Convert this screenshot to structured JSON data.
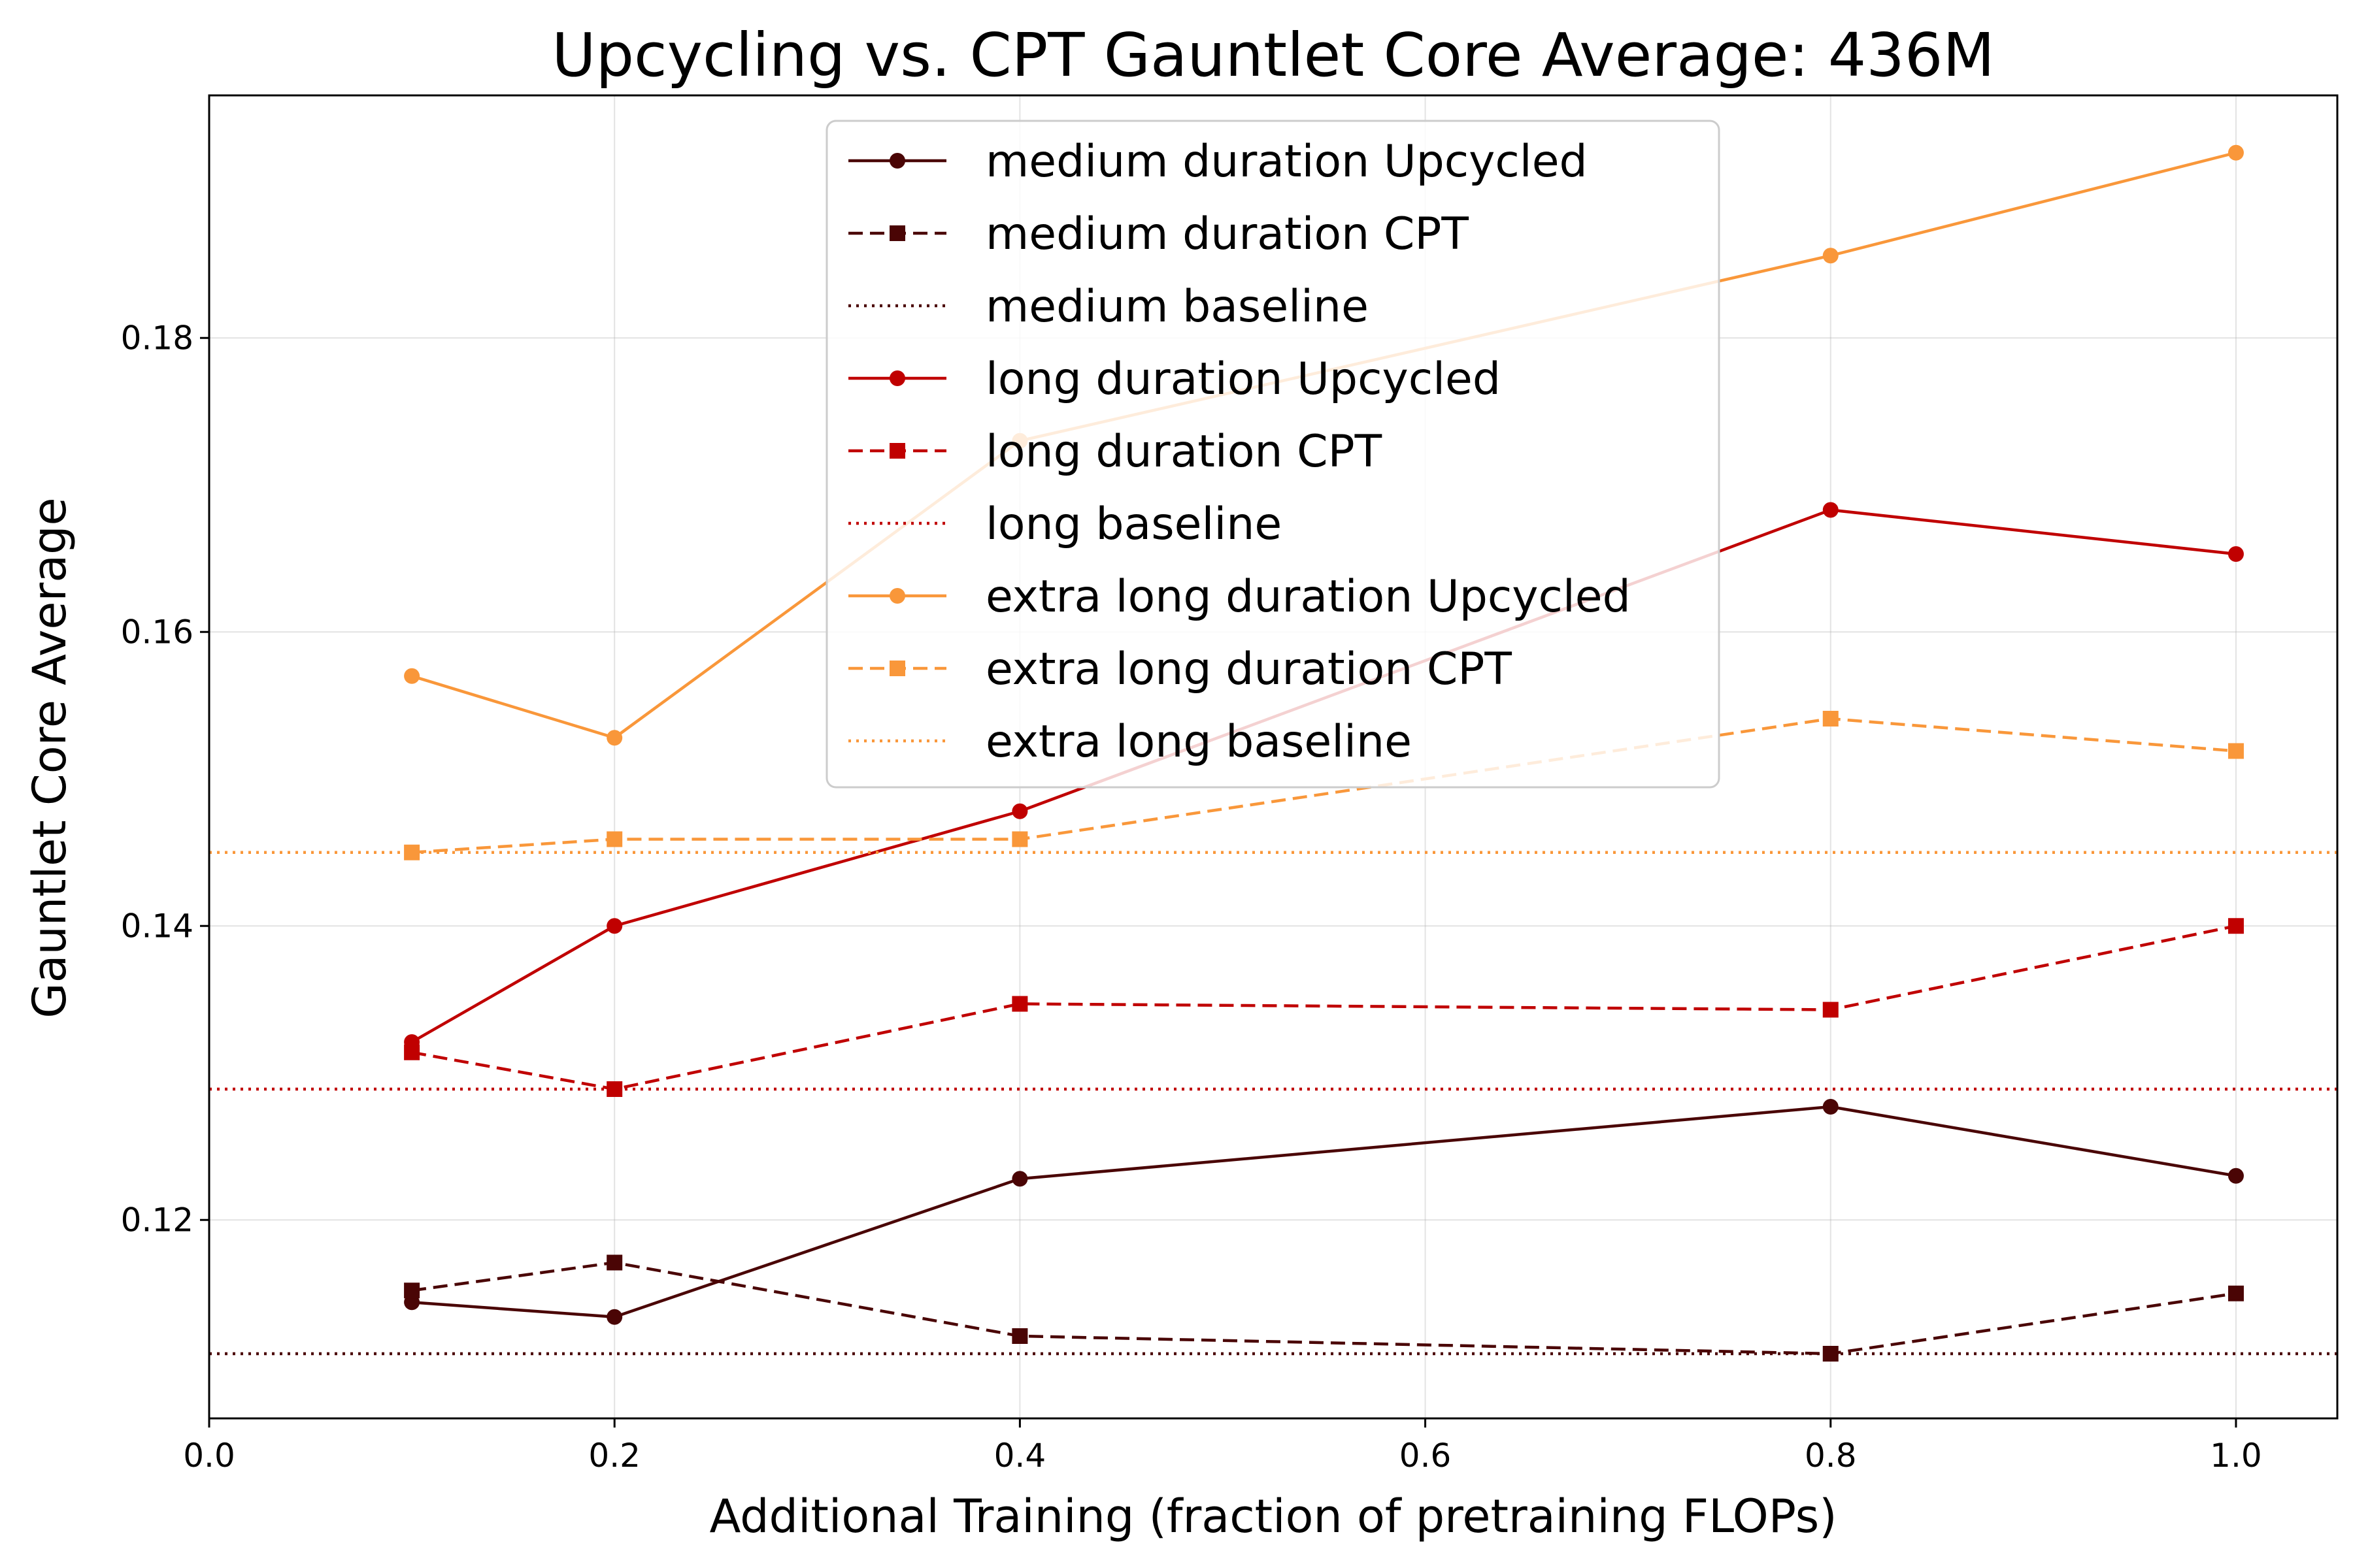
{
  "chart_data": {
    "type": "line",
    "title": "Upcycling vs. CPT Gauntlet Core Average: 436M",
    "xlabel": "Additional Training (fraction of pretraining FLOPs)",
    "ylabel": "Gauntlet Core Average",
    "xlim": [
      0.0,
      1.05
    ],
    "ylim": [
      0.1065,
      0.1965
    ],
    "xticks": [
      0.0,
      0.2,
      0.4,
      0.6,
      0.8,
      1.0
    ],
    "xtick_labels": [
      "0.0",
      "0.2",
      "0.4",
      "0.6",
      "0.8",
      "1.0"
    ],
    "yticks": [
      0.12,
      0.14,
      0.16,
      0.18
    ],
    "ytick_labels": [
      "0.12",
      "0.14",
      "0.16",
      "0.18"
    ],
    "grid": true,
    "legend_position": "upper-center",
    "x": [
      0.1,
      0.2,
      0.4,
      0.8,
      1.0
    ],
    "series": [
      {
        "name": "medium duration Upcycled",
        "kind": "line",
        "marker": "circle",
        "dash": "solid",
        "color": "#4a0505",
        "values": [
          0.1144,
          0.1134,
          0.1228,
          0.1277,
          0.123
        ]
      },
      {
        "name": "medium duration CPT",
        "kind": "line",
        "marker": "square",
        "dash": "dashed",
        "color": "#4a0505",
        "values": [
          0.1152,
          0.1171,
          0.1121,
          0.1109,
          0.115
        ]
      },
      {
        "name": "medium baseline",
        "kind": "baseline",
        "marker": "none",
        "dash": "dotted",
        "color": "#4a0505",
        "value": 0.1109
      },
      {
        "name": "long duration Upcycled",
        "kind": "line",
        "marker": "circle",
        "dash": "solid",
        "color": "#c00000",
        "values": [
          0.1321,
          0.14,
          0.1478,
          0.1683,
          0.1653
        ]
      },
      {
        "name": "long duration CPT",
        "kind": "line",
        "marker": "square",
        "dash": "dashed",
        "color": "#c00000",
        "values": [
          0.1314,
          0.1289,
          0.1347,
          0.1343,
          0.14
        ]
      },
      {
        "name": "long baseline",
        "kind": "baseline",
        "marker": "none",
        "dash": "dotted",
        "color": "#c00000",
        "value": 0.1289
      },
      {
        "name": "extra long duration Upcycled",
        "kind": "line",
        "marker": "circle",
        "dash": "solid",
        "color": "#f9973a",
        "values": [
          0.157,
          0.1528,
          0.173,
          0.1856,
          0.1926
        ]
      },
      {
        "name": "extra long duration CPT",
        "kind": "line",
        "marker": "square",
        "dash": "dashed",
        "color": "#f9973a",
        "values": [
          0.145,
          0.1459,
          0.1459,
          0.1541,
          0.1519
        ]
      },
      {
        "name": "extra long baseline",
        "kind": "baseline",
        "marker": "none",
        "dash": "dotted",
        "color": "#f9973a",
        "value": 0.145
      }
    ]
  }
}
